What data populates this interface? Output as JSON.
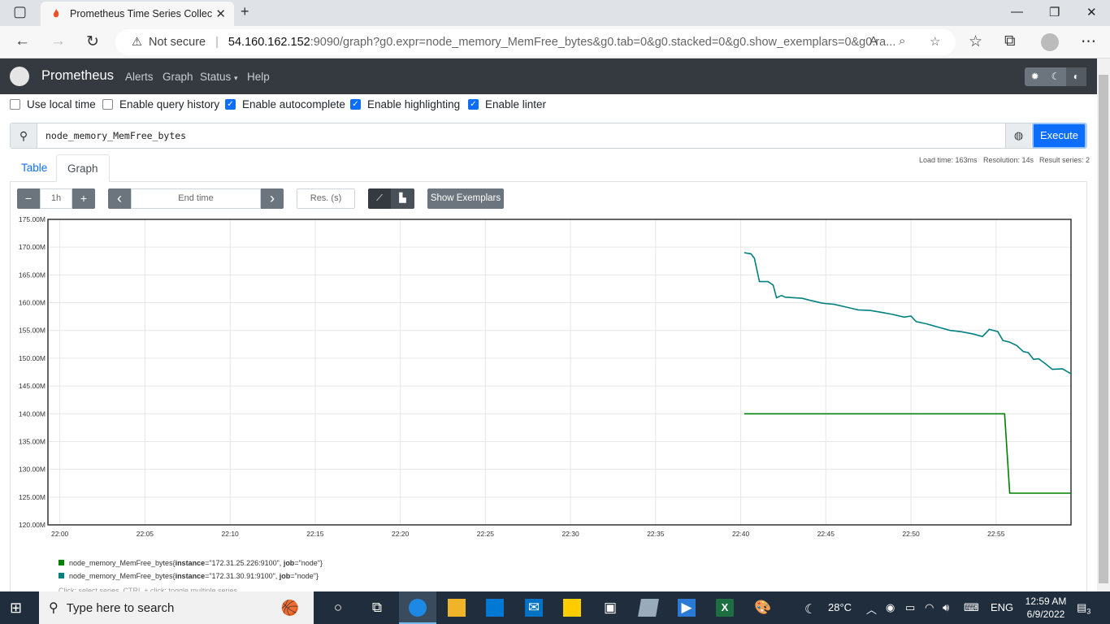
{
  "browser": {
    "tab_title": "Prometheus Time Series Collection and Processing Server",
    "not_secure": "Not secure",
    "url_host": "54.160.162.152",
    "url_path": ":9090/graph?g0.expr=node_memory_MemFree_bytes&g0.tab=0&g0.stacked=0&g0.show_exemplars=0&g0.ra..."
  },
  "nav": {
    "brand": "Prometheus",
    "links": [
      "Alerts",
      "Graph",
      "Status",
      "Help"
    ]
  },
  "options": [
    {
      "label": "Use local time",
      "checked": false
    },
    {
      "label": "Enable query history",
      "checked": false
    },
    {
      "label": "Enable autocomplete",
      "checked": true
    },
    {
      "label": "Enable highlighting",
      "checked": true
    },
    {
      "label": "Enable linter",
      "checked": true
    }
  ],
  "query": {
    "expression": "node_memory_MemFree_bytes",
    "execute_label": "Execute"
  },
  "stats": {
    "load_time": "Load time: 163ms",
    "resolution": "Resolution: 14s",
    "result_series": "Result series: 2"
  },
  "tabs": [
    "Table",
    "Graph"
  ],
  "controls": {
    "minus": "−",
    "range": "1h",
    "plus": "+",
    "prev": "‹",
    "end_time_placeholder": "End time",
    "next": "›",
    "resolution_placeholder": "Res. (s)",
    "show_exemplars": "Show Exemplars"
  },
  "chart_data": {
    "type": "line",
    "ylim": [
      120,
      175
    ],
    "y_ticks": [
      "120.00M",
      "125.00M",
      "130.00M",
      "135.00M",
      "140.00M",
      "145.00M",
      "150.00M",
      "155.00M",
      "160.00M",
      "165.00M",
      "170.00M",
      "175.00M"
    ],
    "x_ticks": [
      "22:00",
      "22:05",
      "22:10",
      "22:15",
      "22:20",
      "22:25",
      "22:30",
      "22:35",
      "22:40",
      "22:45",
      "22:50",
      "22:55"
    ],
    "x_range_minutes": [
      -0.7,
      59.4
    ],
    "series": [
      {
        "name": "node_memory_MemFree_bytes{instance=\"172.31.25.226:9100\", job=\"node\"}",
        "color": "#008000",
        "points": [
          [
            40.2,
            140.0
          ],
          [
            55.5,
            140.0
          ],
          [
            55.8,
            125.7
          ],
          [
            59.4,
            125.7
          ]
        ]
      },
      {
        "name": "node_memory_MemFree_bytes{instance=\"172.31.30.91:9100\", job=\"node\"}",
        "color": "#008080",
        "points": [
          [
            40.2,
            169.0
          ],
          [
            40.6,
            168.8
          ],
          [
            40.8,
            168.0
          ],
          [
            41.1,
            163.8
          ],
          [
            41.6,
            163.8
          ],
          [
            41.9,
            163.2
          ],
          [
            42.1,
            160.9
          ],
          [
            42.4,
            161.3
          ],
          [
            42.6,
            161.0
          ],
          [
            43.1,
            160.9
          ],
          [
            43.6,
            160.8
          ],
          [
            44.1,
            160.4
          ],
          [
            44.8,
            159.9
          ],
          [
            45.5,
            159.7
          ],
          [
            46.2,
            159.2
          ],
          [
            46.9,
            158.7
          ],
          [
            47.6,
            158.6
          ],
          [
            48.2,
            158.3
          ],
          [
            48.9,
            157.9
          ],
          [
            49.6,
            157.4
          ],
          [
            50.0,
            157.6
          ],
          [
            50.3,
            156.6
          ],
          [
            50.9,
            156.2
          ],
          [
            51.6,
            155.6
          ],
          [
            52.3,
            155.0
          ],
          [
            52.9,
            154.8
          ],
          [
            53.6,
            154.4
          ],
          [
            54.2,
            153.9
          ],
          [
            54.6,
            155.2
          ],
          [
            55.1,
            154.8
          ],
          [
            55.4,
            153.2
          ],
          [
            55.8,
            152.9
          ],
          [
            56.2,
            152.3
          ],
          [
            56.6,
            151.2
          ],
          [
            56.9,
            151.0
          ],
          [
            57.2,
            149.8
          ],
          [
            57.5,
            149.9
          ],
          [
            57.9,
            149.0
          ],
          [
            58.3,
            148.0
          ],
          [
            58.9,
            148.1
          ],
          [
            59.4,
            147.2
          ]
        ]
      }
    ]
  },
  "legend": [
    {
      "prefix": "node_memory_MemFree_bytes{",
      "k1": "instance",
      "v1": "=\"172.31.25.226:9100\", ",
      "k2": "job",
      "v2": "=\"node\"}",
      "color": "#008000"
    },
    {
      "prefix": "node_memory_MemFree_bytes{",
      "k1": "instance",
      "v1": "=\"172.31.30.91:9100\", ",
      "k2": "job",
      "v2": "=\"node\"}",
      "color": "#008080"
    }
  ],
  "hint": "Click: select series, CTRL + click: toggle multiple series",
  "taskbar": {
    "search_placeholder": "Type here to search",
    "weather": "28°C",
    "lang": "ENG",
    "time": "12:59 AM",
    "date": "6/9/2022",
    "notif_count": "3"
  }
}
